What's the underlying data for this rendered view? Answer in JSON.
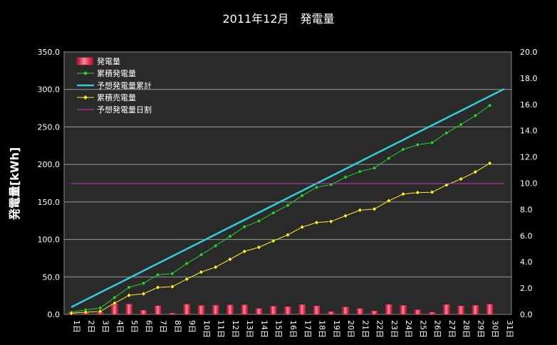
{
  "chart_data": {
    "type": "bar+line",
    "title": "2011年12月　発電量",
    "ylabel": "発電量[kWh]",
    "y2label": "",
    "ylim": [
      0,
      350
    ],
    "y_ticks": [
      "0.0",
      "50.0",
      "100.0",
      "150.0",
      "200.0",
      "250.0",
      "300.0",
      "350.0"
    ],
    "y2lim": [
      0,
      20
    ],
    "y2_ticks": [
      "0.0",
      "2.0",
      "4.0",
      "6.0",
      "8.0",
      "10.0",
      "12.0",
      "14.0",
      "16.0",
      "18.0",
      "20.0"
    ],
    "categories": [
      "1日",
      "2日",
      "3日",
      "4日",
      "5日",
      "6日",
      "7日",
      "8日",
      "9日",
      "10日",
      "11日",
      "12日",
      "13日",
      "14日",
      "15日",
      "16日",
      "17日",
      "18日",
      "19日",
      "20日",
      "21日",
      "22日",
      "23日",
      "24日",
      "25日",
      "26日",
      "27日",
      "28日",
      "29日",
      "30日",
      "31日"
    ],
    "grid": true,
    "legend_position": "top-left",
    "series": [
      {
        "name": "発電量",
        "kind": "bar",
        "axis": "left",
        "color": "#e8224a",
        "values": [
          3.0,
          3.0,
          2.5,
          14.0,
          13.6,
          5.4,
          11.4,
          1.5,
          13.4,
          11.7,
          12.0,
          12.5,
          12.8,
          7.7,
          10.8,
          10.1,
          12.9,
          11.2,
          3.6,
          9.8,
          7.6,
          4.6,
          13.1,
          11.9,
          6.1,
          2.8,
          13.0,
          11.2,
          11.9,
          13.5,
          null
        ]
      },
      {
        "name": "累積発電量",
        "kind": "line",
        "axis": "left",
        "color": "#33cc33",
        "values": [
          3.0,
          6.0,
          8.5,
          22.5,
          36.1,
          41.5,
          52.9,
          54.4,
          67.8,
          79.5,
          91.5,
          104.0,
          116.8,
          124.5,
          135.3,
          145.4,
          158.3,
          169.5,
          173.1,
          182.9,
          190.5,
          195.1,
          208.2,
          220.1,
          226.2,
          229.0,
          242.0,
          253.2,
          265.1,
          278.6,
          null
        ]
      },
      {
        "name": "予想発電量累計",
        "kind": "line",
        "axis": "left",
        "color": "#33ccdd",
        "values": [
          9.7,
          19.4,
          29.1,
          38.8,
          48.5,
          58.2,
          67.9,
          77.6,
          87.3,
          97.0,
          106.7,
          116.4,
          126.1,
          135.8,
          145.5,
          155.2,
          164.9,
          174.6,
          184.3,
          194.0,
          203.7,
          213.4,
          223.1,
          232.8,
          242.5,
          252.2,
          261.9,
          271.6,
          281.3,
          291.0,
          300.7
        ]
      },
      {
        "name": "累積売電量",
        "kind": "line",
        "axis": "left",
        "color": "#ffee33",
        "values": [
          1.5,
          3.0,
          4.0,
          15.0,
          25.5,
          27.5,
          36.0,
          37.0,
          47.0,
          56.5,
          63.0,
          73.5,
          84.0,
          89.5,
          98.0,
          106.0,
          116.5,
          122.5,
          124.0,
          131.5,
          139.0,
          140.5,
          151.5,
          160.5,
          162.5,
          163.0,
          172.5,
          180.5,
          190.0,
          201.5,
          null
        ]
      },
      {
        "name": "予想発電量日割",
        "kind": "line",
        "axis": "left",
        "color": "#cc33cc",
        "values": [
          174.5,
          174.5,
          174.5,
          174.5,
          174.5,
          174.5,
          174.5,
          174.5,
          174.5,
          174.5,
          174.5,
          174.5,
          174.5,
          174.5,
          174.5,
          174.5,
          174.5,
          174.5,
          174.5,
          174.5,
          174.5,
          174.5,
          174.5,
          174.5,
          174.5,
          174.5,
          174.5,
          174.5,
          174.5,
          174.5,
          174.5
        ]
      }
    ]
  }
}
